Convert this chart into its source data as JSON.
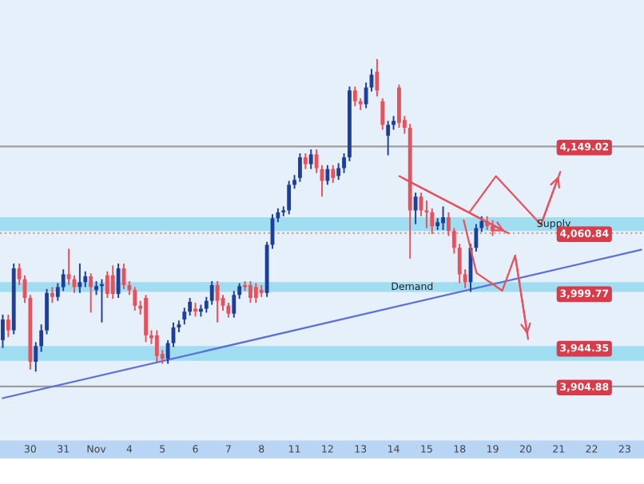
{
  "chart_data": {
    "type": "candlestick",
    "categories": [
      null,
      null,
      null,
      null,
      null,
      "30",
      null,
      null,
      null,
      null,
      null,
      "31",
      null,
      null,
      null,
      null,
      null,
      "Nov",
      null,
      null,
      null,
      null,
      null,
      "4",
      null,
      null,
      null,
      null,
      null,
      "5",
      null,
      null,
      null,
      null,
      null,
      "6",
      null,
      null,
      null,
      null,
      null,
      "7",
      null,
      null,
      null,
      null,
      null,
      "8",
      null,
      null,
      null,
      null,
      null,
      "11",
      null,
      null,
      null,
      null,
      null,
      "12",
      null,
      null,
      null,
      null,
      null,
      "13",
      null,
      null,
      null,
      null,
      null,
      "14",
      null,
      null,
      null,
      null,
      null,
      "15",
      null,
      null,
      null,
      null,
      null,
      "18",
      null,
      null,
      null,
      null,
      null,
      "19",
      null,
      null,
      null,
      null,
      null,
      "20",
      null,
      null,
      null,
      null,
      null,
      "21",
      null,
      null,
      null,
      null,
      null,
      "22",
      null,
      null,
      null,
      null,
      null,
      "23",
      null,
      null,
      null
    ],
    "ohlc": [
      [
        3952,
        3978,
        3944,
        3973
      ],
      [
        3973,
        3978,
        3955,
        3962
      ],
      [
        3962,
        4030,
        3958,
        4025
      ],
      [
        4025,
        4030,
        4008,
        4014
      ],
      [
        4014,
        4018,
        3990,
        3995
      ],
      [
        3995,
        3998,
        3922,
        3930
      ],
      [
        3930,
        3950,
        3920,
        3946
      ],
      [
        3946,
        3968,
        3940,
        3962
      ],
      [
        3962,
        4004,
        3958,
        4000
      ],
      [
        4000,
        4006,
        3990,
        3996
      ],
      [
        3996,
        4010,
        3992,
        4006
      ],
      [
        4006,
        4024,
        4002,
        4019
      ],
      [
        4019,
        4045,
        4008,
        4014
      ],
      [
        4014,
        4018,
        4000,
        4006
      ],
      [
        4006,
        4030,
        4000,
        4011
      ],
      [
        4011,
        4022,
        4006,
        4017
      ],
      [
        4017,
        4020,
        3980,
        4006
      ],
      [
        4003,
        4012,
        3998,
        4007
      ],
      [
        4007,
        4014,
        3970,
        4009
      ],
      [
        4018,
        4022,
        3995,
        3999
      ],
      [
        4018,
        4028,
        3994,
        3999
      ],
      [
        3999,
        4030,
        3995,
        4025
      ],
      [
        4025,
        4030,
        4004,
        4008
      ],
      [
        4008,
        4012,
        3998,
        4003
      ],
      [
        4003,
        4006,
        3982,
        3987
      ],
      [
        3987,
        3992,
        3978,
        3984
      ],
      [
        3995,
        3998,
        3950,
        3957
      ],
      [
        3957,
        3962,
        3948,
        3954
      ],
      [
        3957,
        3962,
        3930,
        3936
      ],
      [
        3938,
        3942,
        3928,
        3933
      ],
      [
        3933,
        3952,
        3928,
        3949
      ],
      [
        3949,
        3970,
        3945,
        3965
      ],
      [
        3965,
        3972,
        3960,
        3968
      ],
      [
        3973,
        3985,
        3968,
        3981
      ],
      [
        3981,
        3995,
        3977,
        3991
      ],
      [
        3984,
        3990,
        3976,
        3981
      ],
      [
        3981,
        3988,
        3976,
        3984
      ],
      [
        3984,
        3996,
        3980,
        3992
      ],
      [
        3992,
        4012,
        3988,
        4008
      ],
      [
        4008,
        4012,
        3970,
        3992
      ],
      [
        3995,
        3998,
        3982,
        3987
      ],
      [
        3987,
        3990,
        3975,
        3979
      ],
      [
        3979,
        4002,
        3975,
        3998
      ],
      [
        3998,
        4010,
        3994,
        4007
      ],
      [
        4008,
        4012,
        4002,
        4006
      ],
      [
        4008,
        4012,
        3990,
        3995
      ],
      [
        4006,
        4010,
        3990,
        3995
      ],
      [
        4003,
        4008,
        3996,
        4000
      ],
      [
        4000,
        4052,
        3996,
        4049
      ],
      [
        4049,
        4080,
        4045,
        4076
      ],
      [
        4076,
        4086,
        4072,
        4082
      ],
      [
        4082,
        4088,
        4078,
        4084
      ],
      [
        4084,
        4114,
        4080,
        4110
      ],
      [
        4110,
        4120,
        4106,
        4115
      ],
      [
        4117,
        4142,
        4113,
        4138
      ],
      [
        4138,
        4142,
        4126,
        4131
      ],
      [
        4131,
        4146,
        4126,
        4141
      ],
      [
        4141,
        4146,
        4122,
        4127
      ],
      [
        4126,
        4130,
        4098,
        4114
      ],
      [
        4114,
        4130,
        4110,
        4126
      ],
      [
        4126,
        4130,
        4112,
        4117
      ],
      [
        4119,
        4132,
        4115,
        4127
      ],
      [
        4127,
        4142,
        4122,
        4138
      ],
      [
        4138,
        4210,
        4134,
        4206
      ],
      [
        4206,
        4210,
        4190,
        4195
      ],
      [
        4195,
        4198,
        4186,
        4192
      ],
      [
        4192,
        4214,
        4188,
        4209
      ],
      [
        4209,
        4228,
        4205,
        4222
      ],
      [
        4225,
        4238,
        4200,
        4206
      ],
      [
        4195,
        4198,
        4166,
        4171
      ],
      [
        4160,
        4175,
        4140,
        4171
      ],
      [
        4171,
        4180,
        4166,
        4175
      ],
      [
        4209,
        4212,
        4168,
        4173
      ],
      [
        4176,
        4180,
        4162,
        4168
      ],
      [
        4168,
        4172,
        4035,
        4084
      ],
      [
        4084,
        4102,
        4070,
        4098
      ],
      [
        4098,
        4102,
        4078,
        4084
      ],
      [
        4084,
        4094,
        4066,
        4082
      ],
      [
        4082,
        4086,
        4060,
        4068
      ],
      [
        4068,
        4076,
        4064,
        4072
      ],
      [
        4071,
        4088,
        4064,
        4077
      ],
      [
        4077,
        4082,
        4058,
        4063
      ],
      [
        4063,
        4066,
        4040,
        4046
      ],
      [
        4046,
        4050,
        4010,
        4019
      ],
      [
        4019,
        4024,
        4005,
        4011
      ],
      [
        4011,
        4050,
        4001,
        4046
      ],
      [
        4046,
        4070,
        4042,
        4066
      ],
      [
        4066,
        4078,
        4062,
        4073
      ],
      [
        4073,
        4078,
        4064,
        4068
      ],
      [
        4068,
        4074,
        4058,
        4063
      ],
      null,
      null,
      null,
      null,
      null,
      null,
      null,
      null,
      null,
      null,
      null,
      null,
      null,
      null,
      null,
      null,
      null,
      null,
      null,
      null,
      null,
      null,
      null,
      null,
      null,
      null,
      null
    ],
    "colors": [
      "#1e3f99",
      "#e8505b",
      "#1e3f99",
      "#e8505b",
      "#e8505b",
      "#e8505b",
      "#1e3f99",
      "#1e3f99",
      "#1e3f99",
      "#e8505b",
      "#1e3f99",
      "#1e3f99",
      "#e8505b",
      "#e8505b",
      "#1e3f99",
      "#1e3f99",
      "#e8505b",
      "#1e3f99",
      "#1e3f99",
      "#e8505b",
      "#e8505b",
      "#1e3f99",
      "#e8505b",
      "#e8505b",
      "#e8505b",
      "#e8505b",
      "#e8505b",
      "#e8505b",
      "#e8505b",
      "#e8505b",
      "#1e3f99",
      "#1e3f99",
      "#1e3f99",
      "#1e3f99",
      "#1e3f99",
      "#e8505b",
      "#1e3f99",
      "#1e3f99",
      "#1e3f99",
      "#e8505b",
      "#e8505b",
      "#e8505b",
      "#1e3f99",
      "#1e3f99",
      "#e8505b",
      "#e8505b",
      "#e8505b",
      "#e8505b",
      "#1e3f99",
      "#1e3f99",
      "#1e3f99",
      "#1e3f99",
      "#1e3f99",
      "#1e3f99",
      "#1e3f99",
      "#e8505b",
      "#1e3f99",
      "#e8505b",
      "#e8505b",
      "#1e3f99",
      "#e8505b",
      "#1e3f99",
      "#1e3f99",
      "#1e3f99",
      "#e8505b",
      "#e8505b",
      "#1e3f99",
      "#1e3f99",
      "#e8505b",
      "#e8505b",
      "#1e3f99",
      "#1e3f99",
      "#e8505b",
      "#e8505b",
      "#e8505b",
      "#1e3f99",
      "#e8505b",
      "#e8505b",
      "#e8505b",
      "#1e3f99",
      "#1e3f99",
      "#e8505b",
      "#e8505b",
      "#e8505b",
      "#e8505b",
      "#1e3f99",
      "#1e3f99",
      "#1e3f99",
      "#e8505b",
      "#e8505b",
      null,
      null,
      null,
      null,
      null,
      null,
      null,
      null,
      null,
      null,
      null,
      null,
      null,
      null,
      null,
      null,
      null,
      null,
      null,
      null,
      null,
      null,
      null,
      null,
      null,
      null,
      null
    ],
    "series": [
      {
        "type": "line",
        "color": "#5b6fd6",
        "values": [
          3893,
          null,
          null,
          null,
          null,
          null,
          null,
          null,
          null,
          null,
          null,
          null,
          null,
          null,
          null,
          null,
          null,
          null,
          null,
          null,
          null,
          null,
          null,
          null,
          null,
          null,
          null,
          null,
          null,
          null,
          null,
          null,
          null,
          null,
          null,
          null,
          null,
          null,
          null,
          null,
          null,
          null,
          null,
          null,
          null,
          null,
          null,
          null,
          null,
          null,
          null,
          null,
          null,
          null,
          null,
          null,
          null,
          null,
          null,
          null,
          null,
          null,
          null,
          null,
          null,
          null,
          null,
          null,
          null,
          null,
          null,
          null,
          null,
          null,
          null,
          null,
          null,
          null,
          null,
          null,
          null,
          null,
          null,
          null,
          null,
          null,
          null,
          null,
          null,
          null,
          null,
          null,
          null,
          null,
          null,
          null,
          null,
          null,
          null,
          null,
          null,
          null,
          null,
          null,
          null,
          null,
          null,
          null,
          null,
          null,
          null,
          null,
          null,
          null,
          null,
          null,
          4044
        ]
      }
    ],
    "ylim": [
      3850,
      4298
    ],
    "yticks": [
      {
        "value": 4149.02,
        "label": "4,149.02"
      },
      {
        "value": 4060.84,
        "label": "4,060.84"
      },
      {
        "value": 3999.77,
        "label": "3,999.77"
      },
      {
        "value": 3944.35,
        "label": "3,944.35"
      },
      {
        "value": 3904.88,
        "label": "3,904.88"
      }
    ],
    "ref_lines": [
      {
        "axis": "y",
        "value": 4149.02,
        "color": "#9e9e9e",
        "line_style": "solid"
      },
      {
        "axis": "y",
        "value": 4060.84,
        "color": "#c9a0a0",
        "line_style": "dotted"
      },
      {
        "axis": "y",
        "value": 3904.88,
        "color": "#9e9e9e",
        "line_style": "solid"
      }
    ],
    "bands": [
      {
        "axis": "y",
        "from": 4063,
        "to": 4077,
        "label": "Supply",
        "color": "#8ed8ee"
      },
      {
        "axis": "y",
        "from": 4001,
        "to": 4011,
        "label": "Demand",
        "color": "#8ed8ee"
      },
      {
        "axis": "y",
        "from": 3931,
        "to": 3946,
        "color": "#8ed8ee"
      }
    ]
  }
}
